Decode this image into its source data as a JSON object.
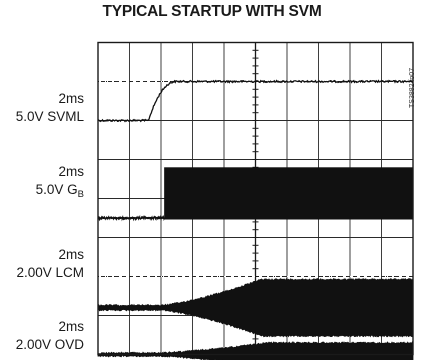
{
  "chart_data": {
    "type": "oscilloscope",
    "title": "TYPICAL STARTUP WITH SVM",
    "figure_id": "TS3882 fo07",
    "grid": {
      "divisions_x": 10,
      "divisions_y": 8
    },
    "channels": [
      {
        "id": "ch1",
        "time_div": "2ms",
        "volts_div": "5.0V",
        "name": "SVML",
        "name_sub": "",
        "signal": "step",
        "start_div": 1.6,
        "rise_divs": 0.9,
        "amplitude_divs": 1.0
      },
      {
        "id": "ch2",
        "time_div": "2ms",
        "volts_div": "5.0V",
        "name": "G",
        "name_sub": "B",
        "signal": "switching_burst",
        "start_div": 2.1,
        "amplitude_divs": 1.3
      },
      {
        "id": "ch3",
        "time_div": "2ms",
        "volts_div": "2.00V",
        "name": "LCM",
        "name_sub": "",
        "signal": "growing_ripple",
        "start_div": 1.6,
        "settle_div": 5.2,
        "amplitude_divs": 1.4
      },
      {
        "id": "ch4",
        "time_div": "2ms",
        "volts_div": "2.00V",
        "name": "OVD",
        "name_sub": "",
        "signal": "growing_ripple",
        "start_div": 1.5,
        "settle_div": 5.4,
        "amplitude_divs": 0.55
      }
    ]
  }
}
